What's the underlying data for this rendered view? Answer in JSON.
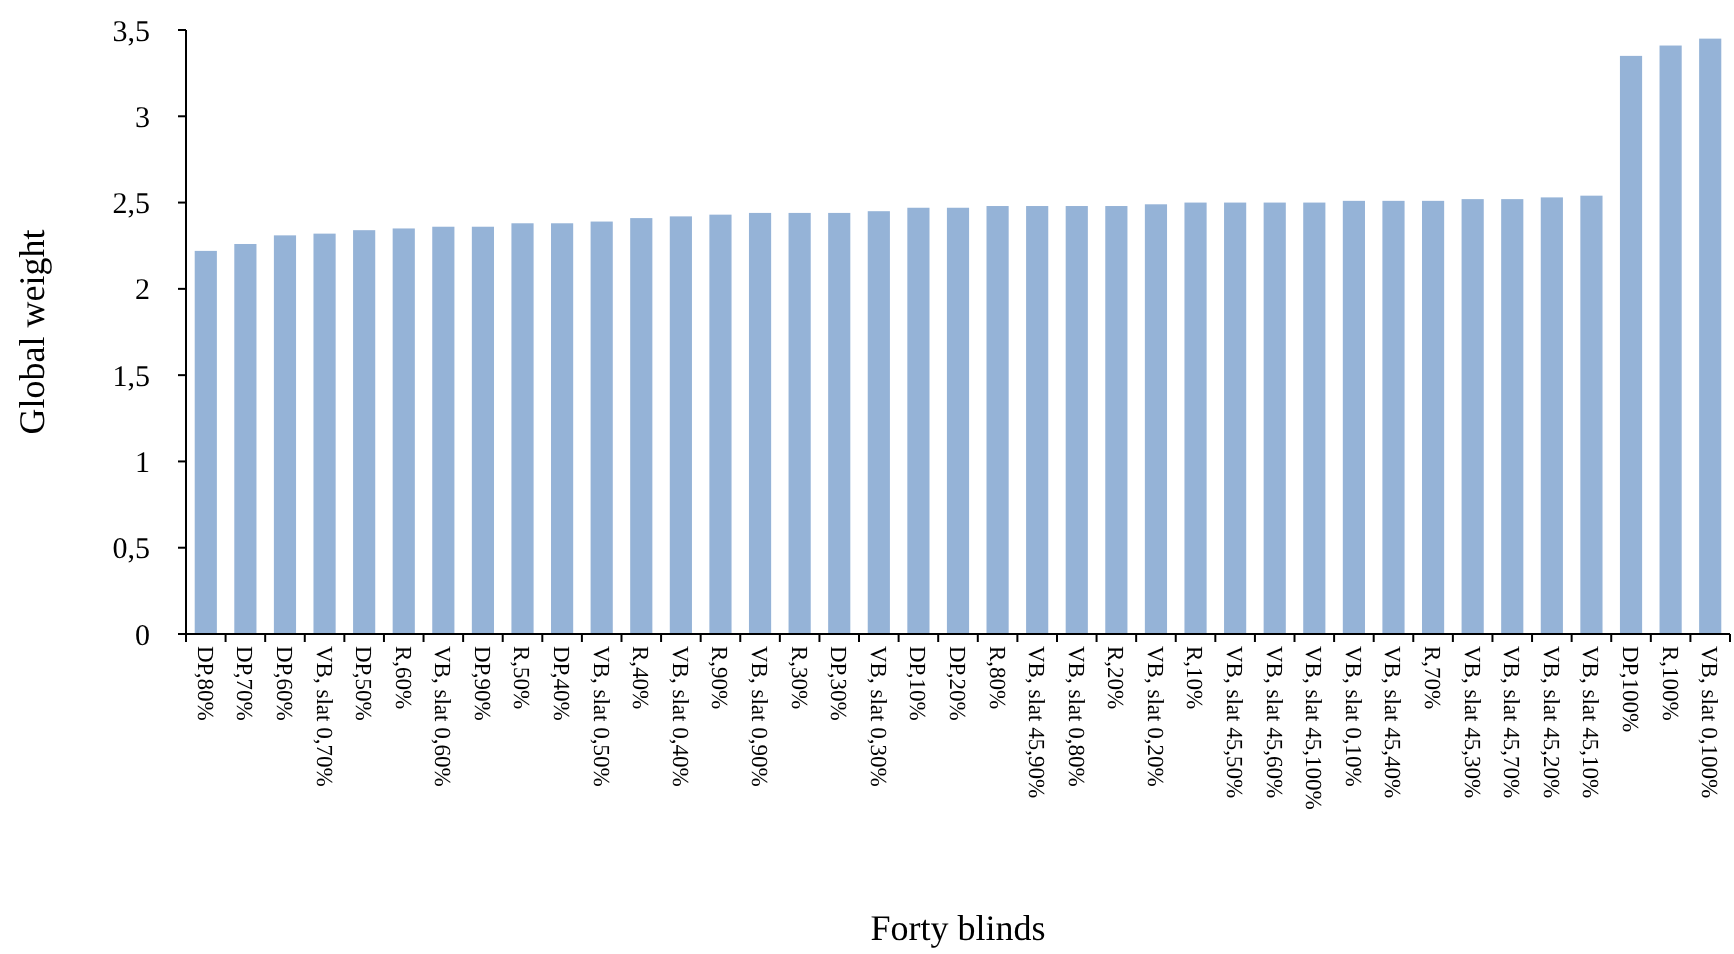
{
  "chart_data": {
    "type": "bar",
    "xlabel": "Forty blinds",
    "ylabel": "Global weight",
    "categories": [
      "DP,80%",
      "DP,70%",
      "DP,60%",
      "VB, slat 0,70%",
      "DP,50%",
      "R,60%",
      "VB, slat 0,60%",
      "DP,90%",
      "R,50%",
      "DP,40%",
      "VB, slat 0,50%",
      "R,40%",
      "VB, slat 0,40%",
      "R,90%",
      "VB, slat 0,90%",
      "R,30%",
      "DP,30%",
      "VB, slat 0,30%",
      "DP,10%",
      "DP,20%",
      "R,80%",
      "VB, slat 45,90%",
      "VB, slat 0,80%",
      "R,20%",
      "VB, slat 0,20%",
      "R,10%",
      "VB, slat 45,50%",
      "VB, slat 45,60%",
      "VB, slat 45,100%",
      "VB, slat 0,10%",
      "VB, slat 45,40%",
      "R,70%",
      "VB, slat 45,30%",
      "VB, slat 45,70%",
      "VB, slat 45,20%",
      "VB, slat 45,10%",
      "DP,100%",
      "R,100%",
      "VB, slat 0,100%"
    ],
    "values": [
      2.22,
      2.26,
      2.31,
      2.32,
      2.34,
      2.35,
      2.36,
      2.36,
      2.38,
      2.38,
      2.39,
      2.41,
      2.42,
      2.43,
      2.44,
      2.44,
      2.44,
      2.45,
      2.47,
      2.47,
      2.48,
      2.48,
      2.48,
      2.48,
      2.49,
      2.5,
      2.5,
      2.5,
      2.5,
      2.51,
      2.51,
      2.51,
      2.52,
      2.52,
      2.53,
      2.54,
      3.35,
      3.41,
      3.45
    ],
    "color": "#95b3d7",
    "ylim": [
      0,
      3.5
    ],
    "yticks": [
      0,
      {
        "value": 0.5,
        "label": "0,5"
      },
      1,
      {
        "value": 1.5,
        "label": "1,5"
      },
      2,
      {
        "value": 2.5,
        "label": "2,5"
      },
      3,
      {
        "value": 3.5,
        "label": "3,5"
      }
    ],
    "grid": false
  }
}
